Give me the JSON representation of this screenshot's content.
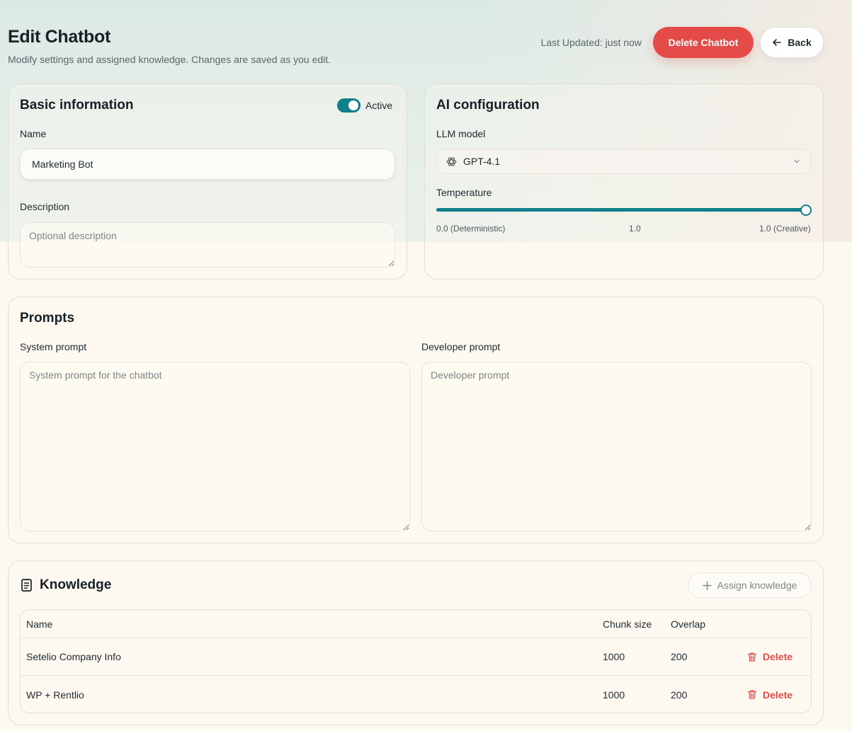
{
  "header": {
    "title": "Edit Chatbot",
    "subtitle": "Modify settings and assigned knowledge. Changes are saved as you edit.",
    "last_updated": "Last Updated: just now",
    "delete_label": "Delete Chatbot",
    "back_label": "Back"
  },
  "basic": {
    "title": "Basic information",
    "active_label": "Active",
    "active": true,
    "name_label": "Name",
    "name_value": "Marketing Bot",
    "description_label": "Description",
    "description_placeholder": "Optional description"
  },
  "ai": {
    "title": "AI configuration",
    "model_label": "LLM model",
    "model_value": "GPT-4.1",
    "temperature_label": "Temperature",
    "temperature_value": "1.0",
    "temperature_fraction": 1.0,
    "min_label": "0.0 (Deterministic)",
    "max_label": "1.0 (Creative)"
  },
  "prompts": {
    "title": "Prompts",
    "system_label": "System prompt",
    "system_placeholder": "System prompt for the chatbot",
    "developer_label": "Developer prompt",
    "developer_placeholder": "Developer prompt"
  },
  "knowledge": {
    "title": "Knowledge",
    "assign_label": "Assign knowledge",
    "columns": [
      "Name",
      "Chunk size",
      "Overlap"
    ],
    "rows": [
      {
        "name": "Setelio Company Info",
        "chunk": "1000",
        "overlap": "200",
        "action": "Delete"
      },
      {
        "name": "WP + Rentlio",
        "chunk": "1000",
        "overlap": "200",
        "action": "Delete"
      }
    ]
  },
  "colors": {
    "accent": "#0f7f89",
    "danger": "#e44a47",
    "background": "#fdf9f1"
  }
}
